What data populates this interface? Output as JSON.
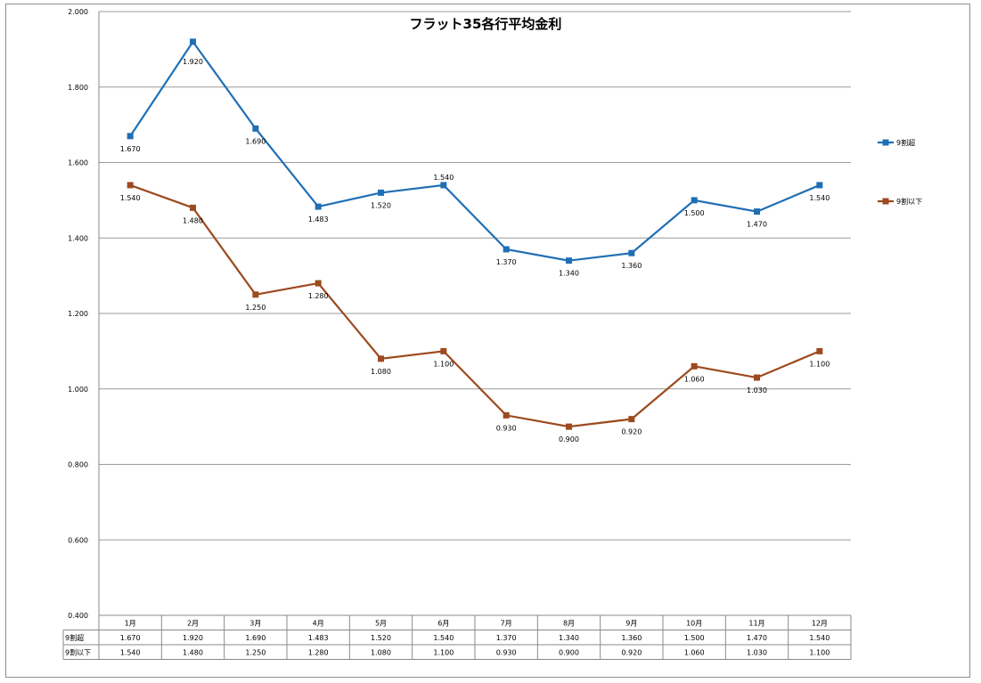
{
  "chart_data": {
    "type": "line",
    "title": "フラット35各行平均金利",
    "categories": [
      "1月",
      "2月",
      "3月",
      "4月",
      "5月",
      "6月",
      "7月",
      "8月",
      "9月",
      "10月",
      "11月",
      "12月"
    ],
    "ylim": [
      0.4,
      2.0
    ],
    "yticks": [
      "0.400",
      "0.600",
      "0.800",
      "1.000",
      "1.200",
      "1.400",
      "1.600",
      "1.800",
      "2.000"
    ],
    "grid": true,
    "legend_position": "right",
    "data_table": true,
    "series": [
      {
        "name": "9割超",
        "color": "#1f6fb5",
        "values": [
          1.67,
          1.92,
          1.69,
          1.483,
          1.52,
          1.54,
          1.37,
          1.34,
          1.36,
          1.5,
          1.47,
          1.54
        ],
        "labels": [
          "1.670",
          "1.920",
          "1.690",
          "1.483",
          "1.520",
          "1.540",
          "1.370",
          "1.340",
          "1.360",
          "1.500",
          "1.470",
          "1.540"
        ]
      },
      {
        "name": "9割以下",
        "color": "#9c4a1e",
        "values": [
          1.54,
          1.48,
          1.25,
          1.28,
          1.08,
          1.1,
          0.93,
          0.9,
          0.92,
          1.06,
          1.03,
          1.1
        ],
        "labels": [
          "1.540",
          "1.480",
          "1.250",
          "1.280",
          "1.080",
          "1.100",
          "0.930",
          "0.900",
          "0.920",
          "1.060",
          "1.030",
          "1.100"
        ]
      }
    ]
  }
}
